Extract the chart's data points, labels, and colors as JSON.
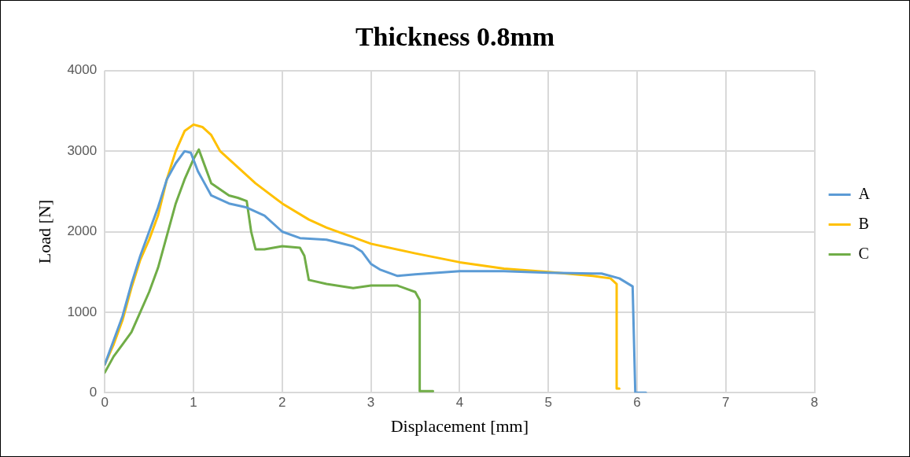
{
  "chart_data": {
    "type": "line",
    "title": "Thickness 0.8mm",
    "xlabel": "Displacement [mm]",
    "ylabel": "Load [N]",
    "xlim": [
      0,
      8
    ],
    "xticks": [
      0,
      1,
      2,
      3,
      4,
      5,
      6,
      7,
      8
    ],
    "ylim": [
      0,
      4000
    ],
    "yticks": [
      0,
      1000,
      2000,
      3000,
      4000
    ],
    "grid": true,
    "legend": "right",
    "marker": "none",
    "series": [
      {
        "name": "A",
        "color": "#5b9bd5",
        "x": [
          0,
          0.1,
          0.2,
          0.3,
          0.4,
          0.5,
          0.6,
          0.7,
          0.8,
          0.9,
          0.97,
          1.05,
          1.2,
          1.4,
          1.6,
          1.8,
          2.0,
          2.2,
          2.5,
          2.8,
          2.9,
          3.0,
          3.1,
          3.3,
          3.5,
          4.0,
          4.5,
          5.0,
          5.5,
          5.6,
          5.8,
          5.95,
          5.98,
          6.1
        ],
        "values": [
          350,
          650,
          950,
          1350,
          1700,
          2000,
          2300,
          2650,
          2850,
          3000,
          2980,
          2750,
          2450,
          2350,
          2300,
          2200,
          2000,
          1920,
          1900,
          1820,
          1750,
          1600,
          1530,
          1450,
          1470,
          1510,
          1510,
          1490,
          1480,
          1480,
          1420,
          1320,
          0,
          0
        ]
      },
      {
        "name": "B",
        "color": "#ffc000",
        "x": [
          0,
          0.1,
          0.2,
          0.3,
          0.4,
          0.5,
          0.6,
          0.7,
          0.8,
          0.9,
          1.0,
          1.1,
          1.2,
          1.3,
          1.5,
          1.7,
          2.0,
          2.3,
          2.5,
          3.0,
          3.5,
          4.0,
          4.5,
          5.0,
          5.5,
          5.7,
          5.77,
          5.77,
          5.8
        ],
        "values": [
          350,
          600,
          900,
          1300,
          1650,
          1900,
          2200,
          2650,
          3000,
          3250,
          3330,
          3300,
          3200,
          3000,
          2800,
          2600,
          2350,
          2150,
          2050,
          1850,
          1730,
          1620,
          1540,
          1500,
          1450,
          1420,
          1350,
          50,
          50
        ]
      },
      {
        "name": "C",
        "color": "#70ad47",
        "x": [
          0,
          0.1,
          0.2,
          0.3,
          0.4,
          0.5,
          0.6,
          0.7,
          0.8,
          0.9,
          1.0,
          1.06,
          1.1,
          1.2,
          1.4,
          1.5,
          1.6,
          1.65,
          1.7,
          1.8,
          2.0,
          2.2,
          2.25,
          2.3,
          2.5,
          2.8,
          3.0,
          3.3,
          3.5,
          3.55,
          3.55,
          3.7
        ],
        "values": [
          250,
          450,
          600,
          750,
          1000,
          1250,
          1550,
          1950,
          2350,
          2650,
          2900,
          3020,
          2900,
          2600,
          2450,
          2420,
          2380,
          2000,
          1780,
          1780,
          1820,
          1800,
          1700,
          1400,
          1350,
          1300,
          1330,
          1330,
          1250,
          1150,
          20,
          20
        ]
      }
    ]
  }
}
